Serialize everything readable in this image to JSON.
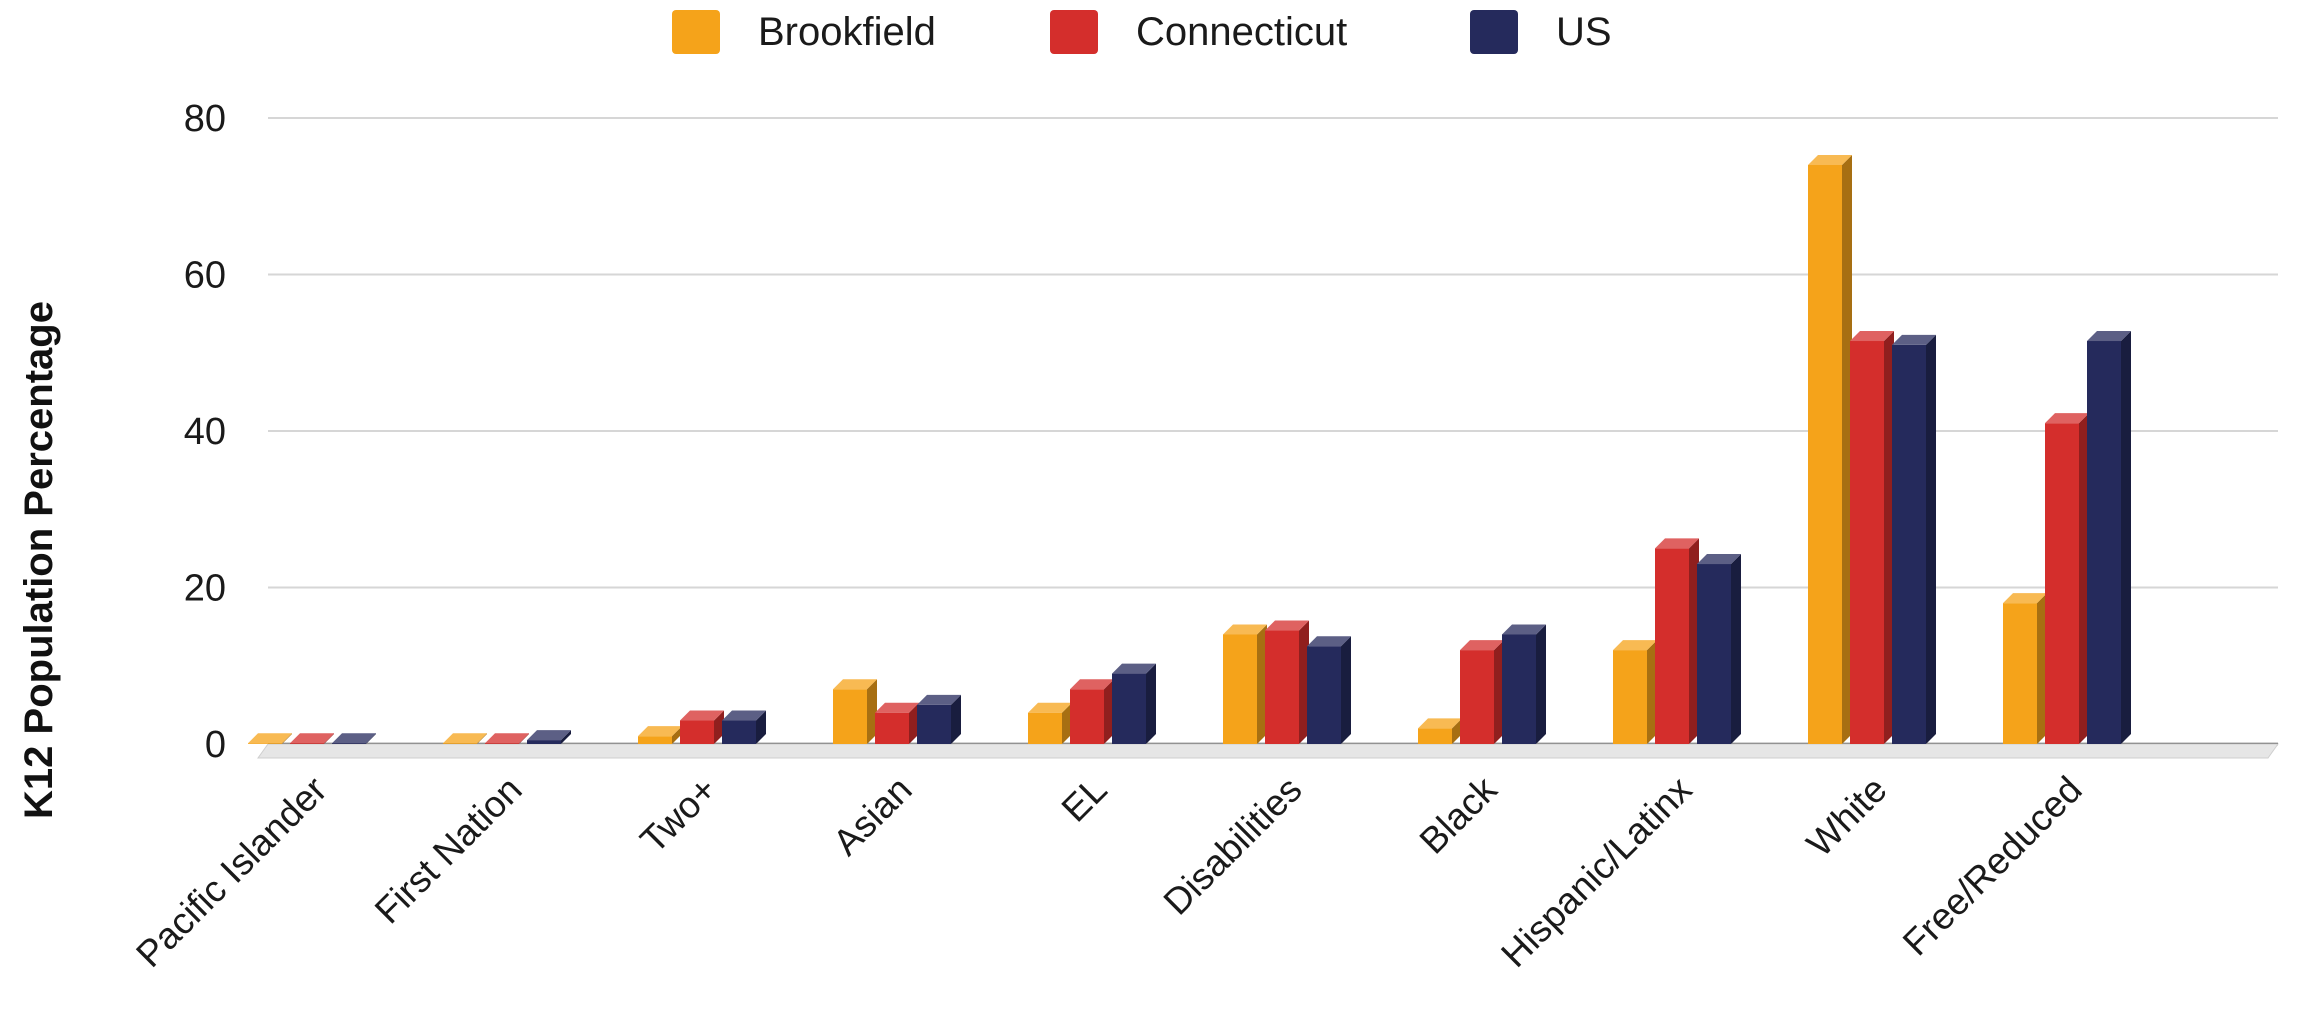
{
  "chart_data": {
    "type": "bar",
    "style": "3d-clustered-column",
    "categories": [
      "Pacific Islander",
      "First Nation",
      "Two+",
      "Asian",
      "EL",
      "Disabilities",
      "Black",
      "Hispanic/Latinx",
      "White",
      "Free/Reduced"
    ],
    "series": [
      {
        "name": "Brookfield",
        "color": "#f5a31a",
        "values": [
          0.1,
          0.1,
          1,
          7,
          4,
          14,
          2,
          12,
          74,
          18
        ]
      },
      {
        "name": "Connecticut",
        "color": "#d42e2c",
        "values": [
          0.1,
          0.1,
          3,
          4,
          7,
          14.5,
          12,
          25,
          51.5,
          41
        ]
      },
      {
        "name": "US",
        "color": "#252a5c",
        "values": [
          0.1,
          0.5,
          3,
          5,
          9,
          12.5,
          14,
          23,
          51,
          51.5
        ]
      }
    ],
    "ylabel": "K12 Population Percentage",
    "xlabel": "",
    "ylim": [
      0,
      80
    ],
    "yticks": [
      0,
      20,
      40,
      60,
      80
    ],
    "grid": true,
    "legend": "top-center"
  }
}
